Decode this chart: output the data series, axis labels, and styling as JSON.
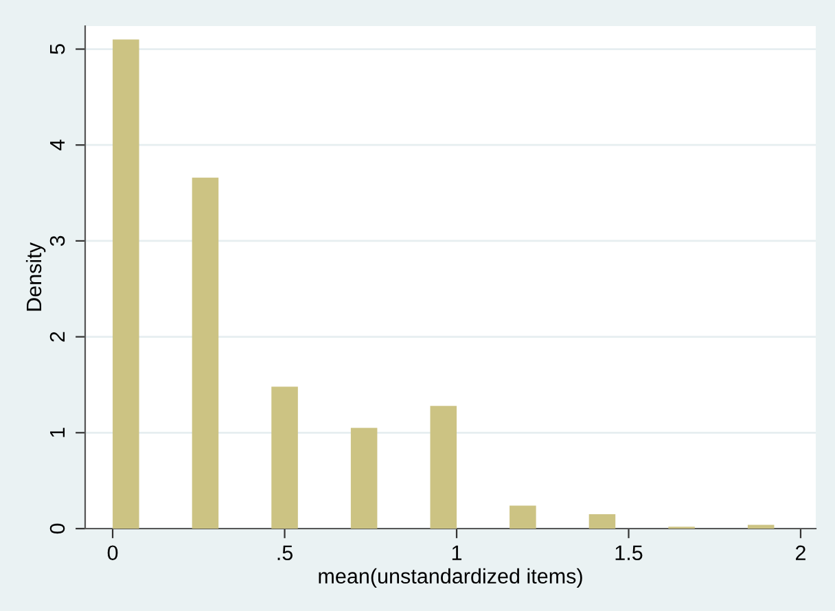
{
  "chart_data": {
    "type": "histogram",
    "xlabel": "mean(unstandardized items)",
    "ylabel": "Density",
    "bins": [
      0,
      0.0769,
      0.1538,
      0.2308,
      0.3077,
      0.3846,
      0.4615,
      0.5385,
      0.6154,
      0.6923,
      0.7692,
      0.8462,
      0.9231,
      1,
      1.0769,
      1.1538,
      1.2308,
      1.3077,
      1.3846,
      1.4615,
      1.5385,
      1.6154,
      1.6923,
      1.7692,
      1.8462,
      1.9231,
      2
    ],
    "values": [
      5.1,
      0,
      0,
      3.66,
      0,
      0,
      1.48,
      0,
      0,
      1.05,
      0,
      0,
      1.28,
      0,
      0,
      0.24,
      0,
      0,
      0.15,
      0,
      0,
      0.02,
      0,
      0,
      0.04,
      0
    ],
    "color": "#ccc383",
    "xlim": [
      -0.08,
      2.044
    ],
    "ylim": [
      0,
      5.24
    ],
    "xticks": [
      0,
      {
        "value": 0.5,
        "label": ".5"
      },
      1,
      1.5,
      2
    ],
    "yticks": [
      0,
      1,
      2,
      3,
      4,
      5
    ],
    "grid": "y"
  }
}
